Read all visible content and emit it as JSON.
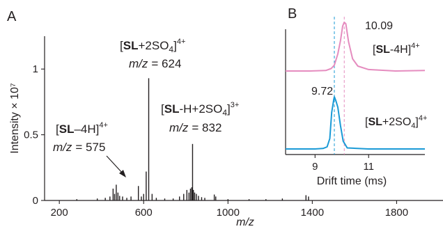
{
  "chart_data": [
    {
      "panel_label": "A",
      "type": "bar",
      "xlabel": "m/z",
      "ylabel": "Intensity × 10⁷",
      "xlim": [
        130,
        2020
      ],
      "ylim": [
        0,
        1.25
      ],
      "xticks": [
        200,
        600,
        1000,
        1400,
        1800
      ],
      "yticks": [
        0,
        0.5,
        1
      ],
      "grid": false,
      "peaks": [
        {
          "x": 283,
          "y": 0.01
        },
        {
          "x": 380,
          "y": 0.015
        },
        {
          "x": 418,
          "y": 0.02
        },
        {
          "x": 440,
          "y": 0.03
        },
        {
          "x": 455,
          "y": 0.09
        },
        {
          "x": 462,
          "y": 0.05
        },
        {
          "x": 470,
          "y": 0.12
        },
        {
          "x": 478,
          "y": 0.06
        },
        {
          "x": 486,
          "y": 0.035
        },
        {
          "x": 500,
          "y": 0.03
        },
        {
          "x": 520,
          "y": 0.02
        },
        {
          "x": 540,
          "y": 0.03
        },
        {
          "x": 575,
          "y": 0.11
        },
        {
          "x": 589,
          "y": 0.03
        },
        {
          "x": 600,
          "y": 0.05
        },
        {
          "x": 612,
          "y": 0.22
        },
        {
          "x": 624,
          "y": 0.93
        },
        {
          "x": 640,
          "y": 0.05
        },
        {
          "x": 660,
          "y": 0.02
        },
        {
          "x": 700,
          "y": 0.015
        },
        {
          "x": 740,
          "y": 0.015
        },
        {
          "x": 770,
          "y": 0.03
        },
        {
          "x": 790,
          "y": 0.05
        },
        {
          "x": 805,
          "y": 0.08
        },
        {
          "x": 815,
          "y": 0.06
        },
        {
          "x": 822,
          "y": 0.09
        },
        {
          "x": 828,
          "y": 0.1
        },
        {
          "x": 832,
          "y": 0.43
        },
        {
          "x": 836,
          "y": 0.08
        },
        {
          "x": 842,
          "y": 0.06
        },
        {
          "x": 850,
          "y": 0.05
        },
        {
          "x": 860,
          "y": 0.035
        },
        {
          "x": 875,
          "y": 0.025
        },
        {
          "x": 890,
          "y": 0.02
        },
        {
          "x": 935,
          "y": 0.045
        },
        {
          "x": 942,
          "y": 0.03
        },
        {
          "x": 1000,
          "y": 0.01
        },
        {
          "x": 1100,
          "y": 0.01
        },
        {
          "x": 1180,
          "y": 0.01
        },
        {
          "x": 1258,
          "y": 0.015
        },
        {
          "x": 1370,
          "y": 0.04
        },
        {
          "x": 1382,
          "y": 0.03
        }
      ],
      "annotations": [
        {
          "ion_bold": "SL",
          "ion_pre": "[",
          "ion_post": "+2SO",
          "ion_sub": "4",
          "ion_close": "]",
          "charge": "4+",
          "mz_label": "m/z",
          "mz_value": "= 624"
        },
        {
          "ion_bold": "SL",
          "ion_pre": "[",
          "ion_post": "-H+2SO",
          "ion_sub": "4",
          "ion_close": "]",
          "charge": "3+",
          "mz_label": "m/z",
          "mz_value": "= 832"
        },
        {
          "ion_bold": "SL",
          "ion_pre": "[",
          "ion_post": "–4H]",
          "charge": "4+",
          "mz_label": "m/z",
          "mz_value": "= 575"
        }
      ]
    },
    {
      "panel_label": "B",
      "type": "line",
      "xlabel": "Drift time (ms)",
      "xlim": [
        7.9,
        13.1
      ],
      "xticks": [
        9,
        11
      ],
      "grid": false,
      "series": [
        {
          "name": "[SL-4H]4+",
          "color": "#e58cbf",
          "peak_label": "10.09",
          "x": [
            7.9,
            8.8,
            9.4,
            9.6,
            9.72,
            9.85,
            9.95,
            10.03,
            10.09,
            10.15,
            10.25,
            10.4,
            10.6,
            11.0,
            12.0,
            13.1
          ],
          "y": [
            0.0,
            0.0,
            0.01,
            0.05,
            0.12,
            0.35,
            0.62,
            0.92,
            1.0,
            0.97,
            0.6,
            0.25,
            0.1,
            0.03,
            0.0,
            0.01
          ]
        },
        {
          "name": "[SL+2SO4]4+",
          "color": "#1a9ad6",
          "peak_label": "9.72",
          "x": [
            7.9,
            9.0,
            9.3,
            9.45,
            9.55,
            9.62,
            9.7,
            9.72,
            9.78,
            9.85,
            9.95,
            10.05,
            10.2,
            11.0,
            13.1
          ],
          "y": [
            0.0,
            0.0,
            0.01,
            0.04,
            0.2,
            0.7,
            0.95,
            1.0,
            0.92,
            0.8,
            0.45,
            0.15,
            0.02,
            0.0,
            0.0
          ]
        }
      ],
      "series_labels": [
        {
          "pre": "[",
          "bold": "SL",
          "post": "-4H]",
          "sup": "4+"
        },
        {
          "pre": "[",
          "bold": "SL",
          "post": "+2SO",
          "sub": "4",
          "close": "]",
          "sup": "4+"
        }
      ],
      "reference_lines_ms": [
        9.72,
        10.09
      ]
    }
  ]
}
